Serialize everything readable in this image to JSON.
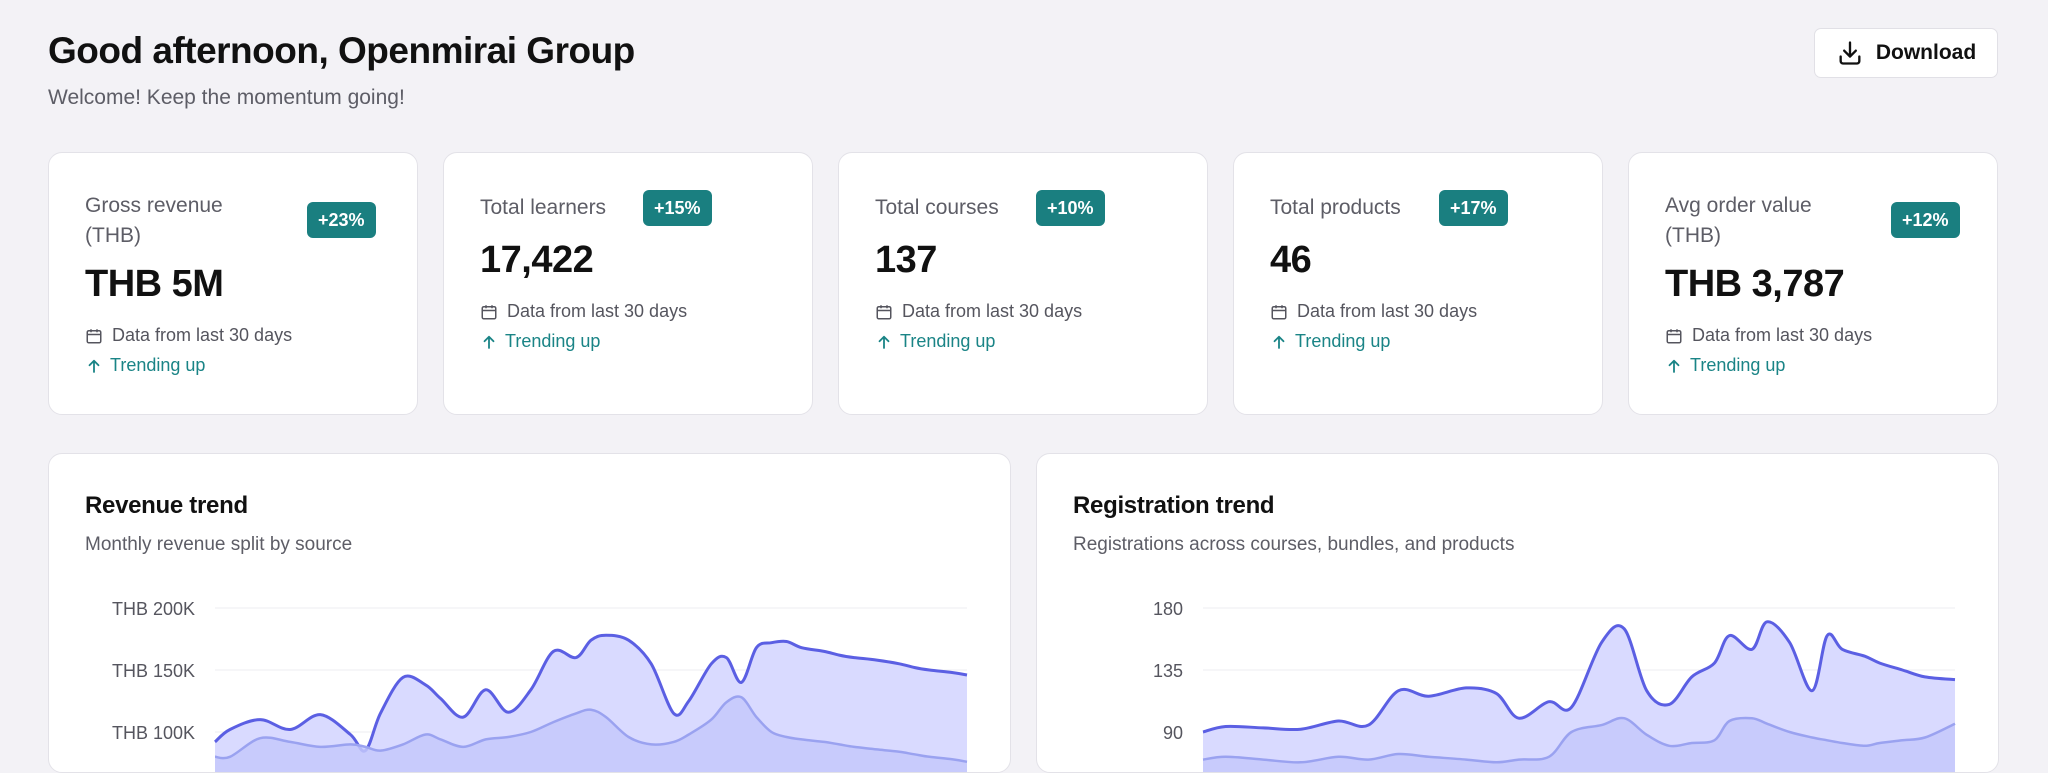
{
  "header": {
    "title": "Good afternoon, Openmirai Group",
    "subtitle": "Welcome! Keep the momentum going!",
    "download_label": "Download"
  },
  "stats": [
    {
      "label": "Gross revenue (THB)",
      "badge": "+23%",
      "value": "THB 5M",
      "meta": "Data from last 30 days",
      "trend": "Trending up"
    },
    {
      "label": "Total learners",
      "badge": "+15%",
      "value": "17,422",
      "meta": "Data from last 30 days",
      "trend": "Trending up"
    },
    {
      "label": "Total courses",
      "badge": "+10%",
      "value": "137",
      "meta": "Data from last 30 days",
      "trend": "Trending up"
    },
    {
      "label": "Total products",
      "badge": "+17%",
      "value": "46",
      "meta": "Data from last 30 days",
      "trend": "Trending up"
    },
    {
      "label": "Avg order value (THB)",
      "badge": "+12%",
      "value": "THB 3,787",
      "meta": "Data from last 30 days",
      "trend": "Trending up"
    }
  ],
  "colors": {
    "accent": "#1a7f80",
    "trend_text": "#1a8486",
    "series_main_line": "#5b5fe3",
    "series_main_fill": "#d9daff",
    "series_secondary_line": "#9aa2f0",
    "series_secondary_fill": "#c4c8fb"
  },
  "panels": [
    {
      "title": "Revenue trend",
      "subtitle": "Monthly revenue split by source"
    },
    {
      "title": "Registration trend",
      "subtitle": "Registrations across courses, bundles, and products"
    }
  ],
  "chart_data": [
    {
      "type": "area",
      "title": "Revenue trend",
      "subtitle": "Monthly revenue split by source",
      "y_ticks": [
        "THB 200K",
        "THB 150K",
        "THB 100K"
      ],
      "ylim": [
        0,
        200000
      ],
      "grid": true,
      "x": [
        0,
        0.02,
        0.06,
        0.1,
        0.14,
        0.18,
        0.2,
        0.22,
        0.25,
        0.28,
        0.3,
        0.33,
        0.36,
        0.39,
        0.42,
        0.45,
        0.48,
        0.5,
        0.52,
        0.55,
        0.58,
        0.61,
        0.63,
        0.66,
        0.68,
        0.7,
        0.72,
        0.74,
        0.76,
        0.78,
        0.81,
        0.83,
        0.85,
        0.88,
        0.91,
        0.93,
        0.95,
        0.98,
        1
      ],
      "series": [
        {
          "values": [
            92000,
            102000,
            110000,
            102000,
            114000,
            98000,
            85000,
            115000,
            144000,
            138000,
            127000,
            112000,
            134000,
            116000,
            134000,
            165000,
            160000,
            174000,
            178000,
            174000,
            155000,
            115000,
            125000,
            155000,
            160000,
            140000,
            168000,
            172000,
            173000,
            168000,
            165000,
            162000,
            160000,
            158000,
            155000,
            152000,
            150000,
            148000,
            146000
          ]
        },
        {
          "values": [
            80000,
            80000,
            95000,
            92000,
            88000,
            90000,
            88000,
            85000,
            90000,
            98000,
            94000,
            88000,
            94000,
            96000,
            100000,
            108000,
            115000,
            118000,
            112000,
            96000,
            90000,
            92000,
            98000,
            110000,
            124000,
            128000,
            112000,
            100000,
            96000,
            94000,
            92000,
            90000,
            88000,
            86000,
            84000,
            82000,
            80000,
            78000,
            76000
          ]
        }
      ]
    },
    {
      "type": "area",
      "title": "Registration trend",
      "subtitle": "Registrations across courses, bundles, and products",
      "y_ticks": [
        "180",
        "135",
        "90"
      ],
      "ylim": [
        0,
        180
      ],
      "grid": true,
      "x": [
        0,
        0.03,
        0.08,
        0.13,
        0.18,
        0.22,
        0.26,
        0.3,
        0.35,
        0.39,
        0.42,
        0.46,
        0.49,
        0.53,
        0.56,
        0.59,
        0.62,
        0.65,
        0.68,
        0.7,
        0.73,
        0.75,
        0.78,
        0.81,
        0.83,
        0.85,
        0.88,
        0.9,
        0.93,
        0.96,
        1
      ],
      "series": [
        {
          "values": [
            90,
            94,
            93,
            92,
            98,
            95,
            120,
            116,
            122,
            118,
            100,
            112,
            108,
            155,
            165,
            120,
            110,
            130,
            140,
            160,
            150,
            170,
            155,
            120,
            160,
            150,
            145,
            140,
            135,
            130,
            128
          ]
        },
        {
          "values": [
            70,
            72,
            70,
            68,
            72,
            70,
            74,
            72,
            70,
            68,
            70,
            72,
            90,
            95,
            100,
            88,
            80,
            82,
            84,
            98,
            100,
            96,
            90,
            86,
            84,
            82,
            80,
            82,
            84,
            86,
            96
          ]
        }
      ]
    }
  ]
}
